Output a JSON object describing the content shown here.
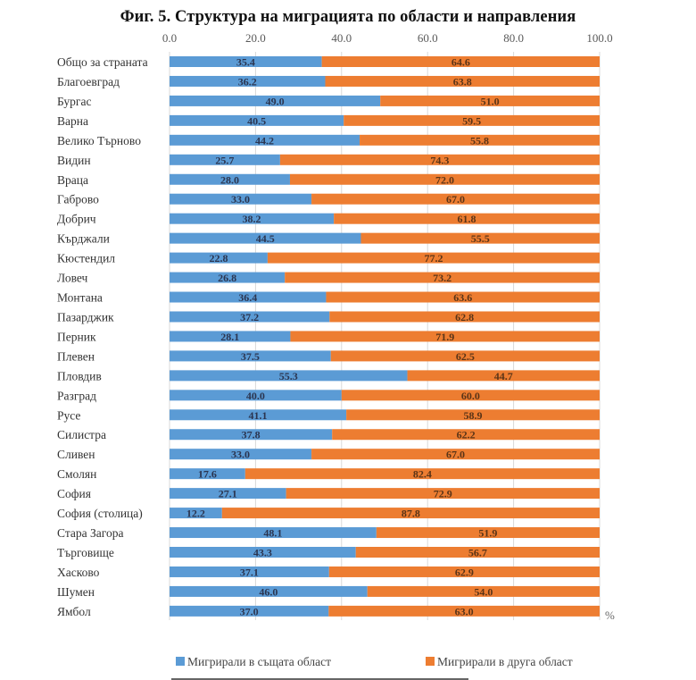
{
  "chart_data": {
    "type": "bar",
    "orientation": "horizontal",
    "stacked": true,
    "title": "Фиг.  5. Структура на миграцията по области и направления",
    "xlabel": "",
    "ylabel": "",
    "unit_label": "%",
    "xlim": [
      0,
      100
    ],
    "x_ticks": [
      "0.0",
      "20.0",
      "40.0",
      "60.0",
      "80.0",
      "100.0"
    ],
    "x_tick_values": [
      0,
      20,
      40,
      60,
      80,
      100
    ],
    "x_axis_position": "top",
    "grid": true,
    "legend_position": "bottom",
    "categories": [
      "Общо за страната",
      "Благоевград",
      "Бургас",
      "Варна",
      "Велико Търново",
      "Видин",
      "Враца",
      "Габрово",
      "Добрич",
      "Кърджали",
      "Кюстендил",
      "Ловеч",
      "Монтана",
      "Пазарджик",
      "Перник",
      "Плевен",
      "Пловдив",
      "Разград",
      "Русе",
      "Силистра",
      "Сливен",
      "Смолян",
      "София",
      "София (столица)",
      "Стара Загора",
      "Търговище",
      "Хасково",
      "Шумен",
      "Ямбол"
    ],
    "series": [
      {
        "name": "Мигрирали в същата област",
        "color": "#5b9bd5",
        "values": [
          35.4,
          36.2,
          49.0,
          40.5,
          44.2,
          25.7,
          28.0,
          33.0,
          38.2,
          44.5,
          22.8,
          26.8,
          36.4,
          37.2,
          28.1,
          37.5,
          55.3,
          40.0,
          41.1,
          37.8,
          33.0,
          17.6,
          27.1,
          12.2,
          48.1,
          43.3,
          37.1,
          46.0,
          37.0
        ],
        "labels": [
          "35.4",
          "36.2",
          "49.0",
          "40.5",
          "44.2",
          "25.7",
          "28.0",
          "33.0",
          "38.2",
          "44.5",
          "22.8",
          "26.8",
          "36.4",
          "37.2",
          "28.1",
          "37.5",
          "55.3",
          "40.0",
          "41.1",
          "37.8",
          "33.0",
          "17.6",
          "27.1",
          "12.2",
          "48.1",
          "43.3",
          "37.1",
          "46.0",
          "37.0"
        ]
      },
      {
        "name": "Мигрирали в друга област",
        "color": "#ed7d31",
        "values": [
          64.6,
          63.8,
          51.0,
          59.5,
          55.8,
          74.3,
          72.0,
          67.0,
          61.8,
          55.5,
          77.2,
          73.2,
          63.6,
          62.8,
          71.9,
          62.5,
          44.7,
          60.0,
          58.9,
          62.2,
          67.0,
          82.4,
          72.9,
          87.8,
          51.9,
          56.7,
          62.9,
          54.0,
          63.0
        ],
        "labels": [
          "64.6",
          "63.8",
          "51.0",
          "59.5",
          "55.8",
          "74.3",
          "72.0",
          "67.0",
          "61.8",
          "55.5",
          "77.2",
          "73.2",
          "63.6",
          "62.8",
          "71.9",
          "62.5",
          "44.7",
          "60.0",
          "58.9",
          "62.2",
          "67.0",
          "82.4",
          "72.9",
          "87.8",
          "51.9",
          "56.7",
          "62.9",
          "54.0",
          "63.0"
        ]
      }
    ]
  }
}
